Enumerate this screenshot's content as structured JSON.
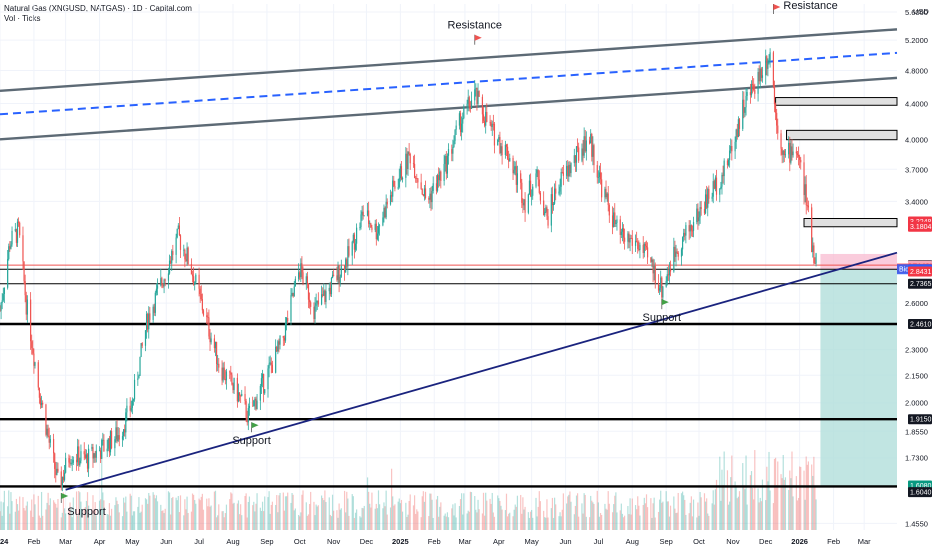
{
  "header": {
    "symbol_line": "Natural Gas (XNGUSD, NATGAS) · 1D · Capital.com",
    "volume_line": "Vol · Ticks",
    "currency": "USD"
  },
  "colors": {
    "up": "#26a69a",
    "down": "#ef5350",
    "trend": "#1a237e",
    "channel": "#5d6a75",
    "channel_mid": "#2962ff",
    "resistance_line": "#ef5350",
    "price_tag": "#f23645",
    "bid_tag": "#2962ff",
    "support_tag": "#131722",
    "last_tag": "#089981",
    "target_zone": "#b2dfdb",
    "stop_zone": "#f8bbd0"
  },
  "chart_data": {
    "type": "candlestick",
    "y_scale": "log",
    "ylim": [
      1.43,
      5.72
    ],
    "y_ticks": [
      {
        "value": 5.6,
        "label": "5.6000"
      },
      {
        "value": 5.2,
        "label": "5.2000"
      },
      {
        "value": 4.8,
        "label": "4.8000"
      },
      {
        "value": 4.4,
        "label": "4.4000"
      },
      {
        "value": 4.0,
        "label": "4.0000"
      },
      {
        "value": 3.7,
        "label": "3.7000"
      },
      {
        "value": 3.4,
        "label": "3.4000"
      },
      {
        "value": 2.6,
        "label": "2.6000"
      },
      {
        "value": 2.3,
        "label": "2.3000"
      },
      {
        "value": 2.15,
        "label": "2.1500"
      },
      {
        "value": 2.0,
        "label": "2.0000"
      },
      {
        "value": 1.855,
        "label": "1.8550"
      },
      {
        "value": 1.73,
        "label": "1.7300"
      },
      {
        "value": 1.455,
        "label": "1.4550"
      }
    ],
    "x_ticks": [
      {
        "date": "2024-01-01",
        "label": "2024"
      },
      {
        "date": "2024-02-01",
        "label": "Feb"
      },
      {
        "date": "2024-03-01",
        "label": "Mar"
      },
      {
        "date": "2024-04-01",
        "label": "Apr"
      },
      {
        "date": "2024-05-01",
        "label": "May"
      },
      {
        "date": "2024-06-01",
        "label": "Jun"
      },
      {
        "date": "2024-07-01",
        "label": "Jul"
      },
      {
        "date": "2024-08-01",
        "label": "Aug"
      },
      {
        "date": "2024-09-01",
        "label": "Sep"
      },
      {
        "date": "2024-10-01",
        "label": "Oct"
      },
      {
        "date": "2024-11-01",
        "label": "Nov"
      },
      {
        "date": "2024-12-01",
        "label": "Dec"
      },
      {
        "date": "2025-01-01",
        "label": "2025"
      },
      {
        "date": "2025-02-01",
        "label": "Feb"
      },
      {
        "date": "2025-03-01",
        "label": "Mar"
      },
      {
        "date": "2025-04-01",
        "label": "Apr"
      },
      {
        "date": "2025-05-01",
        "label": "May"
      },
      {
        "date": "2025-06-01",
        "label": "Jun"
      },
      {
        "date": "2025-07-01",
        "label": "Jul"
      },
      {
        "date": "2025-08-01",
        "label": "Aug"
      },
      {
        "date": "2025-09-01",
        "label": "Sep"
      },
      {
        "date": "2025-10-01",
        "label": "Oct"
      },
      {
        "date": "2025-11-01",
        "label": "Nov"
      },
      {
        "date": "2025-12-01",
        "label": "Dec"
      },
      {
        "date": "2026-01-01",
        "label": "2026"
      },
      {
        "date": "2026-02-01",
        "label": "Feb"
      },
      {
        "date": "2026-03-01",
        "label": "Mar"
      }
    ],
    "price_path": [
      {
        "date": "2024-01-01",
        "value": 2.55
      },
      {
        "date": "2024-01-10",
        "value": 3.05
      },
      {
        "date": "2024-01-18",
        "value": 3.15
      },
      {
        "date": "2024-01-25",
        "value": 2.6
      },
      {
        "date": "2024-02-05",
        "value": 2.1
      },
      {
        "date": "2024-02-15",
        "value": 1.8
      },
      {
        "date": "2024-02-24",
        "value": 1.6
      },
      {
        "date": "2024-03-05",
        "value": 1.75
      },
      {
        "date": "2024-03-20",
        "value": 1.72
      },
      {
        "date": "2024-04-05",
        "value": 1.78
      },
      {
        "date": "2024-04-20",
        "value": 1.85
      },
      {
        "date": "2024-05-01",
        "value": 2.0
      },
      {
        "date": "2024-05-15",
        "value": 2.5
      },
      {
        "date": "2024-05-28",
        "value": 2.75
      },
      {
        "date": "2024-06-12",
        "value": 3.1
      },
      {
        "date": "2024-06-22",
        "value": 2.9
      },
      {
        "date": "2024-07-05",
        "value": 2.55
      },
      {
        "date": "2024-07-20",
        "value": 2.2
      },
      {
        "date": "2024-08-05",
        "value": 2.05
      },
      {
        "date": "2024-08-15",
        "value": 1.93
      },
      {
        "date": "2024-09-01",
        "value": 2.15
      },
      {
        "date": "2024-09-15",
        "value": 2.35
      },
      {
        "date": "2024-10-01",
        "value": 2.85
      },
      {
        "date": "2024-10-15",
        "value": 2.55
      },
      {
        "date": "2024-10-28",
        "value": 2.7
      },
      {
        "date": "2024-11-15",
        "value": 2.95
      },
      {
        "date": "2024-11-28",
        "value": 3.3
      },
      {
        "date": "2024-12-10",
        "value": 3.15
      },
      {
        "date": "2024-12-25",
        "value": 3.5
      },
      {
        "date": "2025-01-10",
        "value": 3.85
      },
      {
        "date": "2025-01-25",
        "value": 3.4
      },
      {
        "date": "2025-02-10",
        "value": 3.7
      },
      {
        "date": "2025-02-25",
        "value": 4.2
      },
      {
        "date": "2025-03-10",
        "value": 4.5
      },
      {
        "date": "2025-03-25",
        "value": 4.1
      },
      {
        "date": "2025-04-10",
        "value": 3.85
      },
      {
        "date": "2025-04-25",
        "value": 3.4
      },
      {
        "date": "2025-05-05",
        "value": 3.65
      },
      {
        "date": "2025-05-15",
        "value": 3.25
      },
      {
        "date": "2025-05-25",
        "value": 3.55
      },
      {
        "date": "2025-06-10",
        "value": 3.8
      },
      {
        "date": "2025-06-22",
        "value": 4.05
      },
      {
        "date": "2025-07-05",
        "value": 3.5
      },
      {
        "date": "2025-07-20",
        "value": 3.1
      },
      {
        "date": "2025-08-05",
        "value": 3.05
      },
      {
        "date": "2025-08-20",
        "value": 2.85
      },
      {
        "date": "2025-08-28",
        "value": 2.7
      },
      {
        "date": "2025-09-10",
        "value": 3.0
      },
      {
        "date": "2025-09-25",
        "value": 3.2
      },
      {
        "date": "2025-10-10",
        "value": 3.45
      },
      {
        "date": "2025-10-25",
        "value": 3.7
      },
      {
        "date": "2025-11-10",
        "value": 4.35
      },
      {
        "date": "2025-11-25",
        "value": 4.75
      },
      {
        "date": "2025-12-05",
        "value": 5.05
      },
      {
        "date": "2025-12-10",
        "value": 4.3
      },
      {
        "date": "2025-12-18",
        "value": 3.8
      },
      {
        "date": "2025-12-28",
        "value": 3.95
      },
      {
        "date": "2026-01-05",
        "value": 3.55
      },
      {
        "date": "2026-01-12",
        "value": 3.05
      },
      {
        "date": "2026-01-18",
        "value": 2.84
      }
    ],
    "channel": {
      "start": {
        "date": "2024-01-01",
        "value": 4.55
      },
      "end": {
        "date": "2026-03-31",
        "value": 5.35
      },
      "mid_offset": 0.06,
      "lower_offset": 0.12
    },
    "trendline": {
      "start": {
        "date": "2024-03-01",
        "value": 1.59
      },
      "end": {
        "date": "2026-03-31",
        "value": 2.97
      }
    },
    "horizontal_levels": [
      {
        "value": 2.8738,
        "color": "red",
        "width": 1
      },
      {
        "value": 2.8431,
        "color": "black",
        "width": 1
      },
      {
        "value": 2.7365,
        "color": "black",
        "width": 1
      },
      {
        "value": 2.461,
        "color": "black",
        "width": 2.4
      },
      {
        "value": 1.915,
        "color": "black",
        "width": 2.4
      },
      {
        "value": 1.604,
        "color": "black",
        "width": 2.4
      }
    ],
    "supply_boxes": [
      {
        "from": "2025-12-10",
        "to": "2026-03-31",
        "low": 4.38,
        "high": 4.47
      },
      {
        "from": "2025-12-20",
        "to": "2026-03-31",
        "low": 4.0,
        "high": 4.1
      },
      {
        "from": "2026-01-05",
        "to": "2026-03-31",
        "low": 3.18,
        "high": 3.25
      }
    ],
    "position": {
      "from": "2026-01-20",
      "to": "2026-03-31",
      "stop_high": 2.96,
      "entry": 2.84,
      "target": 1.604
    },
    "annotations": [
      {
        "text": "Resistance",
        "date": "2025-03-10",
        "value": 5.22,
        "flag": "red"
      },
      {
        "text": "Resistance",
        "date": "2025-12-08",
        "value": 5.66,
        "flag": "red"
      },
      {
        "text": "Support",
        "date": "2025-08-28",
        "value": 2.6,
        "flag": "green"
      },
      {
        "text": "Support",
        "date": "2024-08-18",
        "value": 1.88,
        "flag": "green"
      },
      {
        "text": "Support",
        "date": "2024-02-26",
        "value": 1.56,
        "flag": "green"
      }
    ],
    "price_tags": [
      {
        "label": "3.2248",
        "value": 3.2248,
        "bg": "#f23645"
      },
      {
        "label": "3.1804",
        "value": 3.1804,
        "bg": "#f23645"
      },
      {
        "label": "2.8738",
        "value": 2.8738,
        "bg": "#131722"
      },
      {
        "label": "2.8708",
        "value": 2.8708,
        "bg": "#f7a8b8"
      },
      {
        "label": "2.8483",
        "value": 2.8483,
        "bg": "#f23645",
        "prefix": "Ask"
      },
      {
        "label": "2.8431",
        "value": 2.8431,
        "bg": "#2962ff",
        "prefix": "Bid"
      },
      {
        "label": "2.8431",
        "value": 2.826,
        "bg": "#f23645"
      },
      {
        "label": "2.7365",
        "value": 2.7365,
        "bg": "#131722"
      },
      {
        "label": "2.4610",
        "value": 2.461,
        "bg": "#131722"
      },
      {
        "label": "1.9150",
        "value": 1.915,
        "bg": "#131722"
      },
      {
        "label": "1.6080",
        "value": 1.608,
        "bg": "#089981"
      },
      {
        "label": "1.6040",
        "value": 1.58,
        "bg": "#131722"
      }
    ]
  }
}
